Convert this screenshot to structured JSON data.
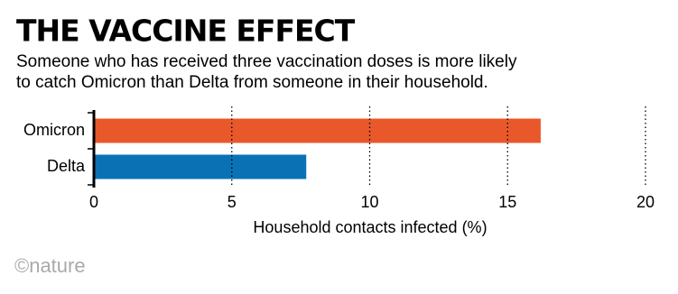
{
  "chart_data": {
    "type": "hbar",
    "title": "THE VACCINE EFFECT",
    "subtitle": [
      "Someone who has received three vaccination doses is more likely",
      "to catch Omicron than Delta from someone in their household."
    ],
    "categories": [
      "Omicron",
      "Delta"
    ],
    "values": [
      16.2,
      7.7
    ],
    "colors": [
      "#e8582b",
      "#0a72b4"
    ],
    "xlabel": "Household contacts infected (%)",
    "xlim": [
      0,
      20
    ],
    "xticks": [
      0,
      5,
      10,
      15,
      20
    ],
    "grid": true,
    "source": "©nature"
  }
}
